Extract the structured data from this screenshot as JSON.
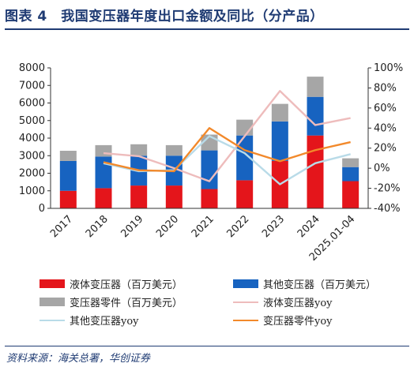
{
  "header": {
    "title": "图表 4　我国变压器年度出口金额及同比（分产品）"
  },
  "source": "资料来源：海关总署，华创证券",
  "colors": {
    "liquid": "#e4151b",
    "other": "#1763c0",
    "parts": "#a6a6a6",
    "liquid_yoy": "#eebcbc",
    "other_yoy": "#b9dbe8",
    "parts_yoy": "#f2892b",
    "title": "#1f3b73"
  },
  "chart_data": {
    "type": "bar",
    "stacked": true,
    "categories": [
      "2017",
      "2018",
      "2019",
      "2020",
      "2021",
      "2022",
      "2023",
      "2024",
      "2025.01-04"
    ],
    "ylim": [
      0,
      8000
    ],
    "y_ticks": [
      "0",
      "1000",
      "2000",
      "3000",
      "4000",
      "5000",
      "6000",
      "7000",
      "8000"
    ],
    "y2lim": [
      -40,
      100
    ],
    "y2_ticks": [
      "-40%",
      "-20%",
      "0%",
      "20%",
      "40%",
      "60%",
      "80%",
      "100%"
    ],
    "series": [
      {
        "name": "液体变压器（百万美元）",
        "kind": "bar",
        "color_key": "liquid",
        "values": [
          1000,
          1150,
          1300,
          1300,
          1100,
          1600,
          2700,
          4150,
          1550
        ]
      },
      {
        "name": "其他变压器（百万美元）",
        "kind": "bar",
        "color_key": "other",
        "values": [
          1700,
          1800,
          1700,
          1700,
          2200,
          2550,
          2250,
          2200,
          800
        ]
      },
      {
        "name": "变压器零件（百万美元）",
        "kind": "bar",
        "color_key": "parts",
        "values": [
          580,
          650,
          650,
          600,
          900,
          900,
          1000,
          1150,
          500
        ]
      },
      {
        "name": "液体变压器yoy",
        "kind": "line",
        "color_key": "liquid_yoy",
        "values": [
          null,
          15,
          12,
          0,
          -13,
          32,
          77,
          43,
          50
        ]
      },
      {
        "name": "其他变压器yoy",
        "kind": "line",
        "color_key": "other_yoy",
        "values": [
          null,
          5,
          -3,
          -2,
          32,
          15,
          -16,
          5,
          14
        ]
      },
      {
        "name": "变压器零件yoy",
        "kind": "line",
        "color_key": "parts_yoy",
        "values": [
          null,
          6,
          -2,
          -3,
          40,
          18,
          7,
          18,
          26
        ]
      }
    ]
  }
}
